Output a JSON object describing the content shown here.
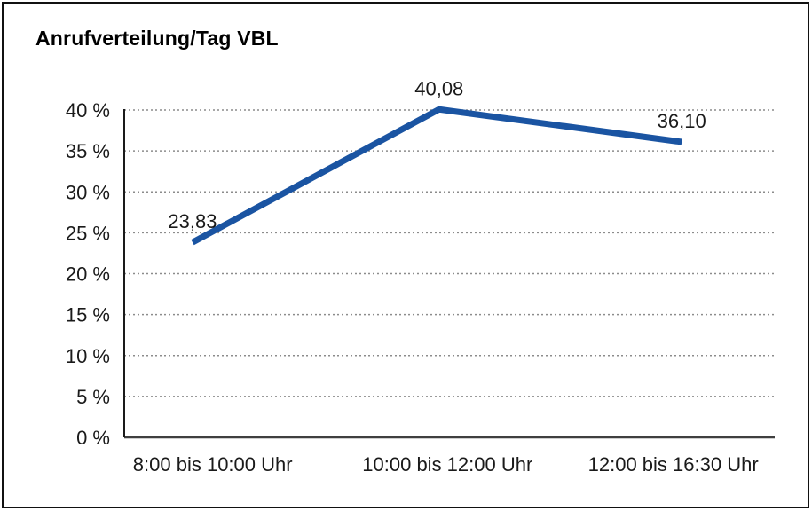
{
  "chart_data": {
    "type": "line",
    "title": "Anrufverteilung/Tag VBL",
    "categories": [
      "8:00 bis 10:00 Uhr",
      "10:00 bis 12:00 Uhr",
      "12:00 bis 16:30 Uhr"
    ],
    "values": [
      23.83,
      40.08,
      36.1
    ],
    "data_labels": [
      "23,83",
      "40,08",
      "36,10"
    ],
    "xlabel": "",
    "ylabel": "",
    "ylim": [
      0,
      40
    ],
    "ytick_step": 5,
    "ytick_labels": [
      "0 %",
      "5 %",
      "10 %",
      "15 %",
      "20 %",
      "25 %",
      "30 %",
      "35 %",
      "40 %"
    ],
    "grid": "horizontal-dotted",
    "legend": "none",
    "line_color": "#1a54a2",
    "frame_color": "#111111"
  }
}
